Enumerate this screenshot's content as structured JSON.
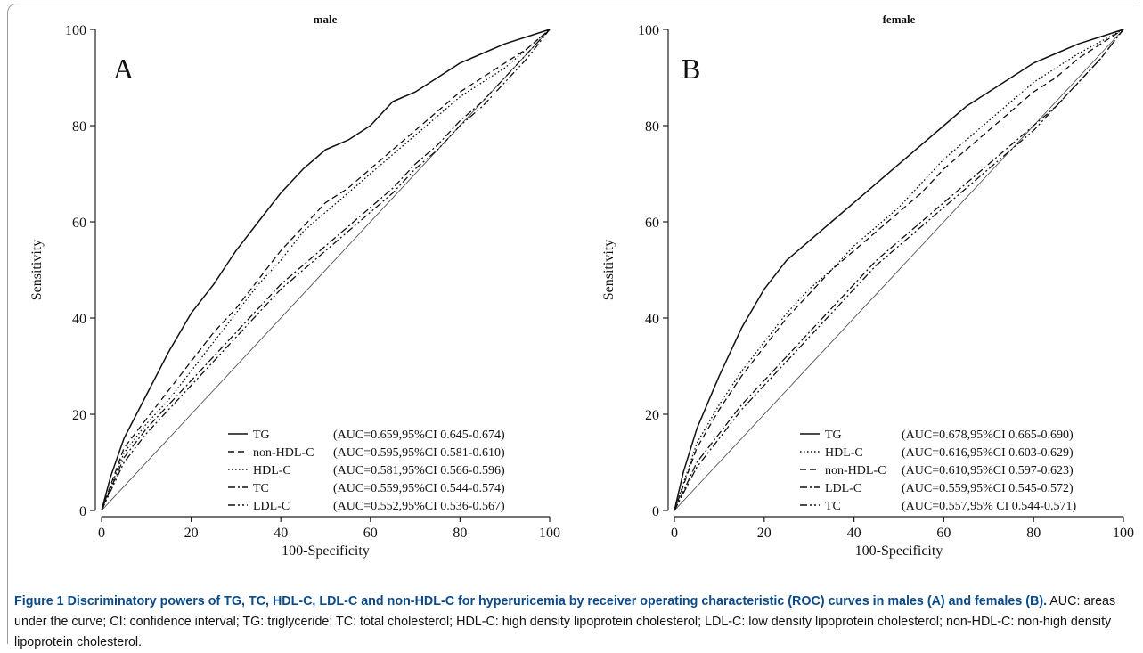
{
  "chart_data": [
    {
      "type": "line",
      "title": "male",
      "panel_label": "A",
      "xlabel": "100-Specificity",
      "ylabel": "Sensitivity",
      "xlim": [
        0,
        100
      ],
      "ylim": [
        0,
        100
      ],
      "xticks": [
        "0",
        "20",
        "40",
        "60",
        "80",
        "100"
      ],
      "yticks": [
        "0",
        "20",
        "40",
        "60",
        "80",
        "100"
      ],
      "grid": false,
      "legend_position": "bottom-right",
      "reference_line": [
        [
          0,
          0
        ],
        [
          100,
          100
        ]
      ],
      "series": [
        {
          "name": "TG",
          "auc_label": "(AUC=0.659,95%CI 0.645-0.674)",
          "style": "solid",
          "points": [
            [
              0,
              0
            ],
            [
              2,
              7
            ],
            [
              5,
              15
            ],
            [
              10,
              24
            ],
            [
              15,
              33
            ],
            [
              20,
              41
            ],
            [
              25,
              47
            ],
            [
              30,
              54
            ],
            [
              35,
              60
            ],
            [
              40,
              66
            ],
            [
              45,
              71
            ],
            [
              50,
              75
            ],
            [
              55,
              77
            ],
            [
              60,
              80
            ],
            [
              65,
              85
            ],
            [
              70,
              87
            ],
            [
              75,
              90
            ],
            [
              80,
              93
            ],
            [
              85,
              95
            ],
            [
              90,
              97
            ],
            [
              95,
              98.5
            ],
            [
              100,
              100
            ]
          ]
        },
        {
          "name": "non-HDL-C",
          "auc_label": "(AUC=0.595,95%CI 0.581-0.610)",
          "style": "dashed",
          "points": [
            [
              0,
              0
            ],
            [
              5,
              13
            ],
            [
              10,
              19
            ],
            [
              15,
              25
            ],
            [
              20,
              31
            ],
            [
              25,
              37
            ],
            [
              30,
              42
            ],
            [
              35,
              48
            ],
            [
              40,
              54
            ],
            [
              45,
              59
            ],
            [
              50,
              64
            ],
            [
              55,
              67
            ],
            [
              60,
              71
            ],
            [
              65,
              75
            ],
            [
              70,
              79
            ],
            [
              75,
              83
            ],
            [
              80,
              87
            ],
            [
              85,
              90
            ],
            [
              90,
              93
            ],
            [
              95,
              96
            ],
            [
              100,
              100
            ]
          ]
        },
        {
          "name": "HDL-C",
          "auc_label": "(AUC=0.581,95%CI 0.566-0.596)",
          "style": "dotted",
          "points": [
            [
              0,
              0
            ],
            [
              5,
              12
            ],
            [
              10,
              18
            ],
            [
              15,
              23
            ],
            [
              20,
              29
            ],
            [
              25,
              35
            ],
            [
              30,
              41
            ],
            [
              35,
              47
            ],
            [
              40,
              52
            ],
            [
              45,
              58
            ],
            [
              50,
              62
            ],
            [
              55,
              66
            ],
            [
              60,
              70
            ],
            [
              65,
              74
            ],
            [
              70,
              78
            ],
            [
              75,
              82
            ],
            [
              80,
              86
            ],
            [
              85,
              89
            ],
            [
              90,
              92
            ],
            [
              95,
              96
            ],
            [
              100,
              100
            ]
          ]
        },
        {
          "name": "TC",
          "auc_label": "(AUC=0.559,95%CI 0.544-0.574)",
          "style": "dashdot",
          "points": [
            [
              0,
              0
            ],
            [
              5,
              11
            ],
            [
              10,
              17
            ],
            [
              15,
              22
            ],
            [
              20,
              27
            ],
            [
              25,
              32
            ],
            [
              30,
              37
            ],
            [
              35,
              42
            ],
            [
              40,
              47
            ],
            [
              45,
              51
            ],
            [
              50,
              55
            ],
            [
              55,
              59
            ],
            [
              60,
              63
            ],
            [
              65,
              67
            ],
            [
              70,
              72
            ],
            [
              75,
              76
            ],
            [
              80,
              81
            ],
            [
              85,
              85
            ],
            [
              90,
              90
            ],
            [
              95,
              95
            ],
            [
              100,
              100
            ]
          ]
        },
        {
          "name": "LDL-C",
          "auc_label": "(AUC=0.552,95%CI 0.536-0.567)",
          "style": "dashdotdot",
          "points": [
            [
              0,
              0
            ],
            [
              5,
              10
            ],
            [
              10,
              16
            ],
            [
              15,
              21
            ],
            [
              20,
              26
            ],
            [
              25,
              31
            ],
            [
              30,
              36
            ],
            [
              35,
              41
            ],
            [
              40,
              46
            ],
            [
              45,
              50
            ],
            [
              50,
              54
            ],
            [
              55,
              58
            ],
            [
              60,
              62
            ],
            [
              65,
              66
            ],
            [
              70,
              71
            ],
            [
              75,
              75
            ],
            [
              80,
              80
            ],
            [
              85,
              84
            ],
            [
              90,
              89
            ],
            [
              95,
              94
            ],
            [
              100,
              100
            ]
          ]
        }
      ]
    },
    {
      "type": "line",
      "title": "female",
      "panel_label": "B",
      "xlabel": "100-Specificity",
      "ylabel": "Sensitivity",
      "xlim": [
        0,
        100
      ],
      "ylim": [
        0,
        100
      ],
      "xticks": [
        "0",
        "20",
        "40",
        "60",
        "80",
        "100"
      ],
      "yticks": [
        "0",
        "20",
        "40",
        "60",
        "80",
        "100"
      ],
      "grid": false,
      "legend_position": "bottom-right",
      "reference_line": [
        [
          0,
          0
        ],
        [
          100,
          100
        ]
      ],
      "series": [
        {
          "name": "TG",
          "auc_label": "(AUC=0.678,95%CI 0.665-0.690)",
          "style": "solid",
          "points": [
            [
              0,
              0
            ],
            [
              2,
              8
            ],
            [
              5,
              17
            ],
            [
              10,
              28
            ],
            [
              15,
              38
            ],
            [
              20,
              46
            ],
            [
              25,
              52
            ],
            [
              30,
              56
            ],
            [
              35,
              60
            ],
            [
              40,
              64
            ],
            [
              45,
              68
            ],
            [
              50,
              72
            ],
            [
              55,
              76
            ],
            [
              60,
              80
            ],
            [
              65,
              84
            ],
            [
              70,
              87
            ],
            [
              75,
              90
            ],
            [
              80,
              93
            ],
            [
              85,
              95
            ],
            [
              90,
              97
            ],
            [
              95,
              98.5
            ],
            [
              100,
              100
            ]
          ]
        },
        {
          "name": "HDL-C",
          "auc_label": "(AUC=0.616,95%CI 0.603-0.629)",
          "style": "dotted",
          "points": [
            [
              0,
              0
            ],
            [
              5,
              14
            ],
            [
              10,
              22
            ],
            [
              15,
              29
            ],
            [
              20,
              35
            ],
            [
              25,
              41
            ],
            [
              30,
              46
            ],
            [
              35,
              50
            ],
            [
              40,
              55
            ],
            [
              45,
              59
            ],
            [
              50,
              63
            ],
            [
              55,
              68
            ],
            [
              60,
              73
            ],
            [
              65,
              77
            ],
            [
              70,
              81
            ],
            [
              75,
              85
            ],
            [
              80,
              89
            ],
            [
              85,
              92
            ],
            [
              90,
              95
            ],
            [
              95,
              97.5
            ],
            [
              100,
              100
            ]
          ]
        },
        {
          "name": "non-HDL-C",
          "auc_label": "(AUC=0.610,95%CI 0.597-0.623)",
          "style": "dashed",
          "points": [
            [
              0,
              0
            ],
            [
              5,
              13
            ],
            [
              10,
              21
            ],
            [
              15,
              28
            ],
            [
              20,
              34
            ],
            [
              25,
              40
            ],
            [
              30,
              45
            ],
            [
              35,
              50
            ],
            [
              40,
              54
            ],
            [
              45,
              58
            ],
            [
              50,
              62
            ],
            [
              55,
              66
            ],
            [
              60,
              71
            ],
            [
              65,
              75
            ],
            [
              70,
              79
            ],
            [
              75,
              83
            ],
            [
              80,
              87
            ],
            [
              85,
              90
            ],
            [
              90,
              94
            ],
            [
              95,
              97
            ],
            [
              100,
              100
            ]
          ]
        },
        {
          "name": "LDL-C",
          "auc_label": "(AUC=0.559,95%CI 0.545-0.572)",
          "style": "dashdot",
          "points": [
            [
              0,
              0
            ],
            [
              5,
              10
            ],
            [
              10,
              16
            ],
            [
              15,
              22
            ],
            [
              20,
              27
            ],
            [
              25,
              32
            ],
            [
              30,
              37
            ],
            [
              35,
              42
            ],
            [
              40,
              47
            ],
            [
              45,
              52
            ],
            [
              50,
              56
            ],
            [
              55,
              60
            ],
            [
              60,
              64
            ],
            [
              65,
              68
            ],
            [
              70,
              72
            ],
            [
              75,
              76
            ],
            [
              80,
              80
            ],
            [
              85,
              84
            ],
            [
              90,
              89
            ],
            [
              95,
              94
            ],
            [
              100,
              100
            ]
          ]
        },
        {
          "name": "TC",
          "auc_label": "(AUC=0.557,95% CI 0.544-0.571)",
          "style": "dashdotdot",
          "points": [
            [
              0,
              0
            ],
            [
              5,
              9
            ],
            [
              10,
              15
            ],
            [
              15,
              21
            ],
            [
              20,
              26
            ],
            [
              25,
              31
            ],
            [
              30,
              36
            ],
            [
              35,
              41
            ],
            [
              40,
              46
            ],
            [
              45,
              51
            ],
            [
              50,
              55
            ],
            [
              55,
              59
            ],
            [
              60,
              63
            ],
            [
              65,
              67
            ],
            [
              70,
              71
            ],
            [
              75,
              75
            ],
            [
              80,
              79
            ],
            [
              85,
              84
            ],
            [
              90,
              89
            ],
            [
              95,
              94
            ],
            [
              100,
              100
            ]
          ]
        }
      ]
    }
  ],
  "caption": {
    "bold": "Figure 1 Discriminatory powers of TG, TC, HDL-C, LDL-C and non-HDL-C for hyperuricemia by receiver operating characteristic (ROC) curves in males (A) and females (B).",
    "rest": " AUC: areas under the curve; CI: confidence interval; TG: triglyceride; TC: total cholesterol; HDL-C: high density lipoprotein cholesterol; LDL-C: low density lipoprotein cholesterol; non-HDL-C: non-high density lipoprotein cholesterol."
  }
}
